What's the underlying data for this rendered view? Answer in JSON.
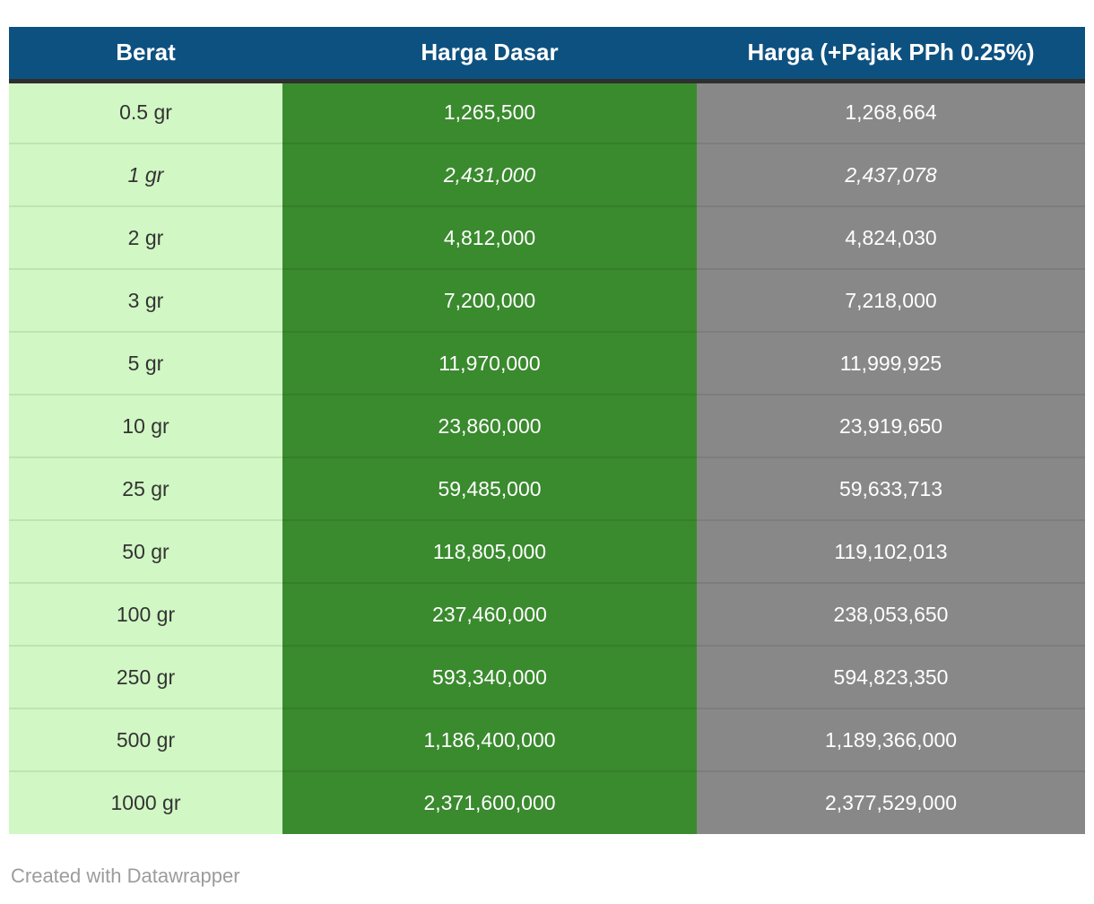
{
  "chart_data": {
    "type": "table",
    "columns": [
      "Berat",
      "Harga Dasar",
      "Harga (+Pajak PPh 0.25%)"
    ],
    "rows": [
      [
        "0.5 gr",
        "1,265,500",
        "1,268,664"
      ],
      [
        "1 gr",
        "2,431,000",
        "2,437,078"
      ],
      [
        "2 gr",
        "4,812,000",
        "4,824,030"
      ],
      [
        "3 gr",
        "7,200,000",
        "7,218,000"
      ],
      [
        "5 gr",
        "11,970,000",
        "11,999,925"
      ],
      [
        "10 gr",
        "23,860,000",
        "23,919,650"
      ],
      [
        "25 gr",
        "59,485,000",
        "59,633,713"
      ],
      [
        "50 gr",
        "118,805,000",
        "119,102,013"
      ],
      [
        "100 gr",
        "237,460,000",
        "238,053,650"
      ],
      [
        "250 gr",
        "593,340,000",
        "594,823,350"
      ],
      [
        "500 gr",
        "1,186,400,000",
        "1,189,366,000"
      ],
      [
        "1000 gr",
        "2,371,600,000",
        "2,377,529,000"
      ]
    ],
    "italic_row_index": 1,
    "layout_hints": {
      "grid": "horizontal row dividers only",
      "alignment": "all cells center-aligned"
    }
  },
  "table": {
    "header": {
      "berat": "Berat",
      "harga_dasar": "Harga Dasar",
      "harga_pajak": "Harga (+Pajak PPh 0.25%)"
    },
    "rows": [
      {
        "berat": "0.5 gr",
        "harga_dasar": "1,265,500",
        "harga_pajak": "1,268,664",
        "italic": false
      },
      {
        "berat": "1 gr",
        "harga_dasar": "2,431,000",
        "harga_pajak": "2,437,078",
        "italic": true
      },
      {
        "berat": "2 gr",
        "harga_dasar": "4,812,000",
        "harga_pajak": "4,824,030",
        "italic": false
      },
      {
        "berat": "3 gr",
        "harga_dasar": "7,200,000",
        "harga_pajak": "7,218,000",
        "italic": false
      },
      {
        "berat": "5 gr",
        "harga_dasar": "11,970,000",
        "harga_pajak": "11,999,925",
        "italic": false
      },
      {
        "berat": "10 gr",
        "harga_dasar": "23,860,000",
        "harga_pajak": "23,919,650",
        "italic": false
      },
      {
        "berat": "25 gr",
        "harga_dasar": "59,485,000",
        "harga_pajak": "59,633,713",
        "italic": false
      },
      {
        "berat": "50 gr",
        "harga_dasar": "118,805,000",
        "harga_pajak": "119,102,013",
        "italic": false
      },
      {
        "berat": "100 gr",
        "harga_dasar": "237,460,000",
        "harga_pajak": "238,053,650",
        "italic": false
      },
      {
        "berat": "250 gr",
        "harga_dasar": "593,340,000",
        "harga_pajak": "594,823,350",
        "italic": false
      },
      {
        "berat": "500 gr",
        "harga_dasar": "1,186,400,000",
        "harga_pajak": "1,189,366,000",
        "italic": false
      },
      {
        "berat": "1000 gr",
        "harga_dasar": "2,371,600,000",
        "harga_pajak": "2,377,529,000",
        "italic": false
      }
    ]
  },
  "footer": {
    "attribution": "Created with Datawrapper"
  },
  "colors": {
    "header_bg": "#0d5180",
    "header_text": "#ffffff",
    "header_border": "#2f2f2f",
    "col_berat_bg": "#d1f7c4",
    "col_berat_text": "#333333",
    "col_dasar_bg": "#3a8a2e",
    "col_pajak_bg": "#888888",
    "value_text_light": "#ffffff",
    "row_divider": "rgba(0,0,0,0.08)",
    "attribution_text": "#9c9c9c",
    "page_bg": "#ffffff"
  }
}
